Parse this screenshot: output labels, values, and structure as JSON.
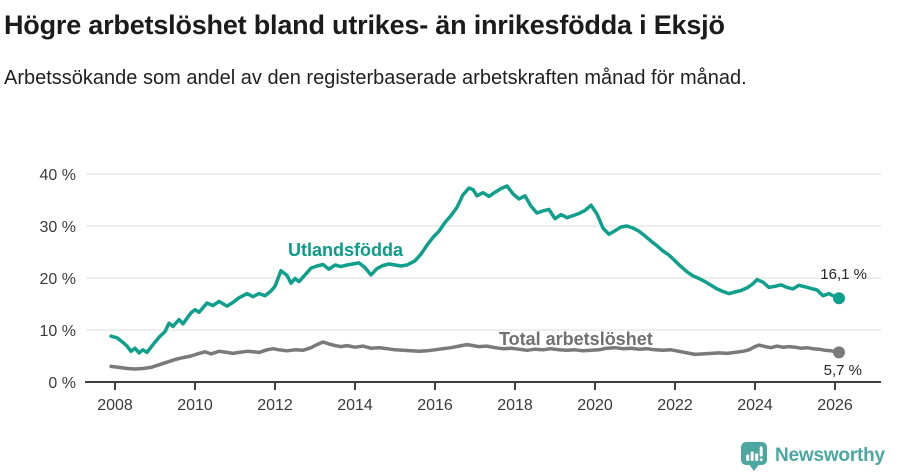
{
  "header": {
    "title": "Högre arbetslöshet bland utrikes- än inrikesfödda i Eksjö",
    "subtitle": "Arbetssökande som andel av den registerbaserade arbetskraften månad för månad."
  },
  "branding": {
    "logo_text": "Newsworthy",
    "logo_color": "#4BA7A0",
    "logo_icon": "speech-bubble-bar-chart-exclamation"
  },
  "chart_data": {
    "type": "line",
    "unit": "%",
    "grid": "horizontal",
    "x_axis": {
      "ticks": [
        "2008",
        "2010",
        "2012",
        "2014",
        "2016",
        "2018",
        "2020",
        "2022",
        "2024",
        "2026"
      ],
      "tick_years": [
        2008,
        2010,
        2012,
        2014,
        2016,
        2018,
        2020,
        2022,
        2024,
        2026
      ],
      "range": [
        2007.75,
        2026.4
      ]
    },
    "y_axis": {
      "ticks": [
        "40 %",
        "30 %",
        "20 %",
        "10 %",
        "0 %"
      ],
      "tick_values": [
        40,
        30,
        20,
        10,
        0
      ],
      "range": [
        0,
        40
      ]
    },
    "series": [
      {
        "name": "Utlandsfödda",
        "color": "#0FA08C",
        "label_color": "#0C9B88",
        "end_label": "16,1 %",
        "end_value": 16.1,
        "points": [
          [
            2007.9,
            8.8
          ],
          [
            2008.05,
            8.5
          ],
          [
            2008.2,
            7.6
          ],
          [
            2008.3,
            6.9
          ],
          [
            2008.4,
            5.9
          ],
          [
            2008.5,
            6.5
          ],
          [
            2008.6,
            5.6
          ],
          [
            2008.7,
            6.2
          ],
          [
            2008.8,
            5.7
          ],
          [
            2008.95,
            7.2
          ],
          [
            2009.1,
            8.6
          ],
          [
            2009.25,
            9.7
          ],
          [
            2009.35,
            11.3
          ],
          [
            2009.45,
            10.7
          ],
          [
            2009.6,
            12.0
          ],
          [
            2009.7,
            11.2
          ],
          [
            2009.9,
            13.3
          ],
          [
            2010.0,
            13.9
          ],
          [
            2010.1,
            13.4
          ],
          [
            2010.3,
            15.2
          ],
          [
            2010.45,
            14.7
          ],
          [
            2010.6,
            15.5
          ],
          [
            2010.8,
            14.6
          ],
          [
            2010.95,
            15.3
          ],
          [
            2011.1,
            16.2
          ],
          [
            2011.3,
            17.0
          ],
          [
            2011.45,
            16.4
          ],
          [
            2011.6,
            17.0
          ],
          [
            2011.75,
            16.6
          ],
          [
            2011.9,
            17.5
          ],
          [
            2012.0,
            18.4
          ],
          [
            2012.15,
            21.4
          ],
          [
            2012.3,
            20.5
          ],
          [
            2012.4,
            19.0
          ],
          [
            2012.5,
            19.9
          ],
          [
            2012.6,
            19.3
          ],
          [
            2012.75,
            20.6
          ],
          [
            2012.9,
            21.9
          ],
          [
            2013.05,
            22.3
          ],
          [
            2013.2,
            22.6
          ],
          [
            2013.35,
            21.7
          ],
          [
            2013.5,
            22.5
          ],
          [
            2013.65,
            22.2
          ],
          [
            2013.8,
            22.5
          ],
          [
            2013.95,
            22.7
          ],
          [
            2014.1,
            22.9
          ],
          [
            2014.25,
            22.0
          ],
          [
            2014.4,
            20.6
          ],
          [
            2014.55,
            21.8
          ],
          [
            2014.7,
            22.4
          ],
          [
            2014.85,
            22.7
          ],
          [
            2015.0,
            22.5
          ],
          [
            2015.15,
            22.3
          ],
          [
            2015.3,
            22.5
          ],
          [
            2015.5,
            23.3
          ],
          [
            2015.65,
            24.6
          ],
          [
            2015.8,
            26.3
          ],
          [
            2015.95,
            27.8
          ],
          [
            2016.1,
            29.0
          ],
          [
            2016.25,
            30.7
          ],
          [
            2016.4,
            32.0
          ],
          [
            2016.55,
            33.6
          ],
          [
            2016.7,
            36.0
          ],
          [
            2016.85,
            37.3
          ],
          [
            2016.95,
            37.0
          ],
          [
            2017.05,
            35.8
          ],
          [
            2017.2,
            36.4
          ],
          [
            2017.35,
            35.7
          ],
          [
            2017.5,
            36.5
          ],
          [
            2017.65,
            37.2
          ],
          [
            2017.8,
            37.7
          ],
          [
            2017.95,
            36.2
          ],
          [
            2018.1,
            35.2
          ],
          [
            2018.25,
            35.8
          ],
          [
            2018.4,
            33.8
          ],
          [
            2018.55,
            32.5
          ],
          [
            2018.7,
            32.9
          ],
          [
            2018.85,
            33.2
          ],
          [
            2019.0,
            31.4
          ],
          [
            2019.15,
            32.2
          ],
          [
            2019.3,
            31.6
          ],
          [
            2019.45,
            32.0
          ],
          [
            2019.6,
            32.4
          ],
          [
            2019.75,
            33.0
          ],
          [
            2019.9,
            34.0
          ],
          [
            2020.05,
            32.3
          ],
          [
            2020.2,
            29.6
          ],
          [
            2020.35,
            28.4
          ],
          [
            2020.5,
            29.1
          ],
          [
            2020.65,
            29.8
          ],
          [
            2020.8,
            30.0
          ],
          [
            2020.95,
            29.6
          ],
          [
            2021.1,
            29.0
          ],
          [
            2021.25,
            28.1
          ],
          [
            2021.4,
            27.1
          ],
          [
            2021.55,
            26.2
          ],
          [
            2021.7,
            25.2
          ],
          [
            2021.85,
            24.4
          ],
          [
            2022.0,
            23.3
          ],
          [
            2022.15,
            22.2
          ],
          [
            2022.3,
            21.2
          ],
          [
            2022.45,
            20.4
          ],
          [
            2022.6,
            19.9
          ],
          [
            2022.75,
            19.3
          ],
          [
            2022.9,
            18.6
          ],
          [
            2023.05,
            17.9
          ],
          [
            2023.2,
            17.4
          ],
          [
            2023.35,
            17.0
          ],
          [
            2023.5,
            17.3
          ],
          [
            2023.65,
            17.6
          ],
          [
            2023.8,
            18.1
          ],
          [
            2023.95,
            18.9
          ],
          [
            2024.05,
            19.7
          ],
          [
            2024.2,
            19.2
          ],
          [
            2024.35,
            18.2
          ],
          [
            2024.5,
            18.4
          ],
          [
            2024.65,
            18.7
          ],
          [
            2024.8,
            18.2
          ],
          [
            2024.95,
            17.9
          ],
          [
            2025.1,
            18.6
          ],
          [
            2025.25,
            18.3
          ],
          [
            2025.4,
            18.0
          ],
          [
            2025.55,
            17.7
          ],
          [
            2025.7,
            16.6
          ],
          [
            2025.85,
            17.0
          ],
          [
            2025.95,
            16.6
          ],
          [
            2026.1,
            16.1
          ]
        ]
      },
      {
        "name": "Total arbetslöshet",
        "color": "#7A7A7A",
        "label_color": "#707070",
        "end_label": "5,7 %",
        "end_value": 5.7,
        "points": [
          [
            2007.9,
            3.0
          ],
          [
            2008.1,
            2.8
          ],
          [
            2008.3,
            2.6
          ],
          [
            2008.5,
            2.5
          ],
          [
            2008.7,
            2.6
          ],
          [
            2008.9,
            2.8
          ],
          [
            2009.1,
            3.3
          ],
          [
            2009.3,
            3.8
          ],
          [
            2009.5,
            4.3
          ],
          [
            2009.7,
            4.7
          ],
          [
            2009.9,
            5.0
          ],
          [
            2010.1,
            5.5
          ],
          [
            2010.25,
            5.8
          ],
          [
            2010.4,
            5.4
          ],
          [
            2010.6,
            5.9
          ],
          [
            2010.8,
            5.7
          ],
          [
            2010.95,
            5.5
          ],
          [
            2011.1,
            5.7
          ],
          [
            2011.3,
            5.9
          ],
          [
            2011.45,
            5.8
          ],
          [
            2011.6,
            5.7
          ],
          [
            2011.8,
            6.2
          ],
          [
            2011.95,
            6.4
          ],
          [
            2012.1,
            6.2
          ],
          [
            2012.3,
            6.0
          ],
          [
            2012.5,
            6.2
          ],
          [
            2012.7,
            6.1
          ],
          [
            2012.9,
            6.6
          ],
          [
            2013.05,
            7.2
          ],
          [
            2013.2,
            7.7
          ],
          [
            2013.35,
            7.3
          ],
          [
            2013.5,
            7.0
          ],
          [
            2013.65,
            6.8
          ],
          [
            2013.8,
            7.0
          ],
          [
            2014.0,
            6.7
          ],
          [
            2014.2,
            6.9
          ],
          [
            2014.4,
            6.5
          ],
          [
            2014.6,
            6.6
          ],
          [
            2014.8,
            6.4
          ],
          [
            2015.0,
            6.2
          ],
          [
            2015.2,
            6.1
          ],
          [
            2015.4,
            6.0
          ],
          [
            2015.6,
            5.9
          ],
          [
            2015.8,
            6.0
          ],
          [
            2016.0,
            6.2
          ],
          [
            2016.2,
            6.4
          ],
          [
            2016.4,
            6.6
          ],
          [
            2016.6,
            6.9
          ],
          [
            2016.8,
            7.2
          ],
          [
            2016.95,
            7.0
          ],
          [
            2017.1,
            6.8
          ],
          [
            2017.3,
            6.9
          ],
          [
            2017.5,
            6.6
          ],
          [
            2017.7,
            6.4
          ],
          [
            2017.9,
            6.5
          ],
          [
            2018.1,
            6.3
          ],
          [
            2018.3,
            6.1
          ],
          [
            2018.5,
            6.3
          ],
          [
            2018.7,
            6.2
          ],
          [
            2018.9,
            6.4
          ],
          [
            2019.1,
            6.2
          ],
          [
            2019.3,
            6.1
          ],
          [
            2019.5,
            6.2
          ],
          [
            2019.7,
            6.0
          ],
          [
            2019.9,
            6.1
          ],
          [
            2020.1,
            6.2
          ],
          [
            2020.3,
            6.5
          ],
          [
            2020.5,
            6.6
          ],
          [
            2020.7,
            6.4
          ],
          [
            2020.9,
            6.5
          ],
          [
            2021.1,
            6.3
          ],
          [
            2021.3,
            6.4
          ],
          [
            2021.5,
            6.2
          ],
          [
            2021.7,
            6.1
          ],
          [
            2021.9,
            6.2
          ],
          [
            2022.1,
            5.9
          ],
          [
            2022.3,
            5.6
          ],
          [
            2022.5,
            5.3
          ],
          [
            2022.7,
            5.4
          ],
          [
            2022.9,
            5.5
          ],
          [
            2023.1,
            5.6
          ],
          [
            2023.3,
            5.5
          ],
          [
            2023.5,
            5.7
          ],
          [
            2023.7,
            5.9
          ],
          [
            2023.85,
            6.2
          ],
          [
            2024.0,
            6.8
          ],
          [
            2024.1,
            7.1
          ],
          [
            2024.25,
            6.8
          ],
          [
            2024.4,
            6.6
          ],
          [
            2024.55,
            6.9
          ],
          [
            2024.7,
            6.7
          ],
          [
            2024.85,
            6.8
          ],
          [
            2025.0,
            6.7
          ],
          [
            2025.15,
            6.5
          ],
          [
            2025.3,
            6.6
          ],
          [
            2025.45,
            6.4
          ],
          [
            2025.6,
            6.3
          ],
          [
            2025.75,
            6.1
          ],
          [
            2025.9,
            6.0
          ],
          [
            2026.1,
            5.7
          ]
        ]
      }
    ]
  }
}
